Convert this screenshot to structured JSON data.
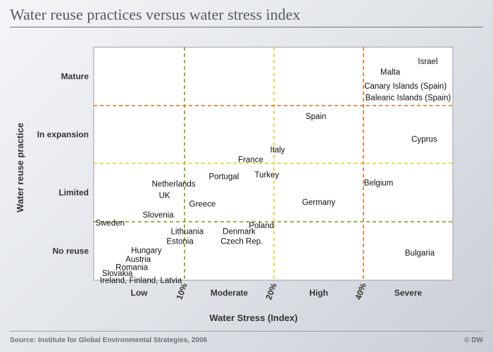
{
  "title": "Water reuse practices versus water stress index",
  "source": "Source: Institute for Global Environmental Strategies, 2006",
  "credit": "© DW",
  "colors": {
    "green": "#77a012",
    "yellow": "#e8cd1c",
    "orange": "#e06a1a"
  },
  "chart_data": {
    "type": "scatter",
    "title": "Water reuse practices versus water stress index",
    "xlabel": "Water Stress (Index)",
    "ylabel": "Water reuse practice",
    "x_categories": [
      "Low",
      "Moderate",
      "High",
      "Severe"
    ],
    "x_thresholds": [
      "10%",
      "20%",
      "40%"
    ],
    "y_categories": [
      "No reuse",
      "Limited",
      "In expansion",
      "Mature"
    ],
    "grid": false,
    "points": [
      {
        "label": "Israel",
        "x": 3.72,
        "y": 3.76
      },
      {
        "label": "Malta",
        "x": 3.3,
        "y": 3.58
      },
      {
        "label": "Canary Islands (Spain)",
        "x": 3.47,
        "y": 3.34
      },
      {
        "label": "Balearic Islands (Spain)",
        "x": 3.5,
        "y": 3.14
      },
      {
        "label": "Spain",
        "x": 2.47,
        "y": 2.82
      },
      {
        "label": "Cyprus",
        "x": 3.68,
        "y": 2.42
      },
      {
        "label": "Italy",
        "x": 2.04,
        "y": 2.24
      },
      {
        "label": "France",
        "x": 1.74,
        "y": 2.07
      },
      {
        "label": "Portugal",
        "x": 1.44,
        "y": 1.78
      },
      {
        "label": "Turkey",
        "x": 1.92,
        "y": 1.81
      },
      {
        "label": "Netherlands",
        "x": 0.88,
        "y": 1.65
      },
      {
        "label": "UK",
        "x": 0.78,
        "y": 1.45
      },
      {
        "label": "Belgium",
        "x": 3.17,
        "y": 1.67
      },
      {
        "label": "Greece",
        "x": 1.2,
        "y": 1.31
      },
      {
        "label": "Germany",
        "x": 2.5,
        "y": 1.34
      },
      {
        "label": "Slovenia",
        "x": 0.71,
        "y": 1.12
      },
      {
        "label": "Sweden",
        "x": 0.18,
        "y": 0.98
      },
      {
        "label": "Poland",
        "x": 1.86,
        "y": 0.94
      },
      {
        "label": "Lithuania",
        "x": 1.03,
        "y": 0.84
      },
      {
        "label": "Denmark",
        "x": 1.61,
        "y": 0.84
      },
      {
        "label": "Estonia",
        "x": 0.95,
        "y": 0.67
      },
      {
        "label": "Czech Rep.",
        "x": 1.64,
        "y": 0.67
      },
      {
        "label": "Hungary",
        "x": 0.58,
        "y": 0.51
      },
      {
        "label": "Austria",
        "x": 0.49,
        "y": 0.36
      },
      {
        "label": "Romania",
        "x": 0.42,
        "y": 0.22
      },
      {
        "label": "Slovakia",
        "x": 0.26,
        "y": 0.12
      },
      {
        "label": "Ireland, Finland, Latvia",
        "x": 0.52,
        "y": 0.0
      },
      {
        "label": "Bulgaria",
        "x": 3.63,
        "y": 0.47
      }
    ]
  }
}
